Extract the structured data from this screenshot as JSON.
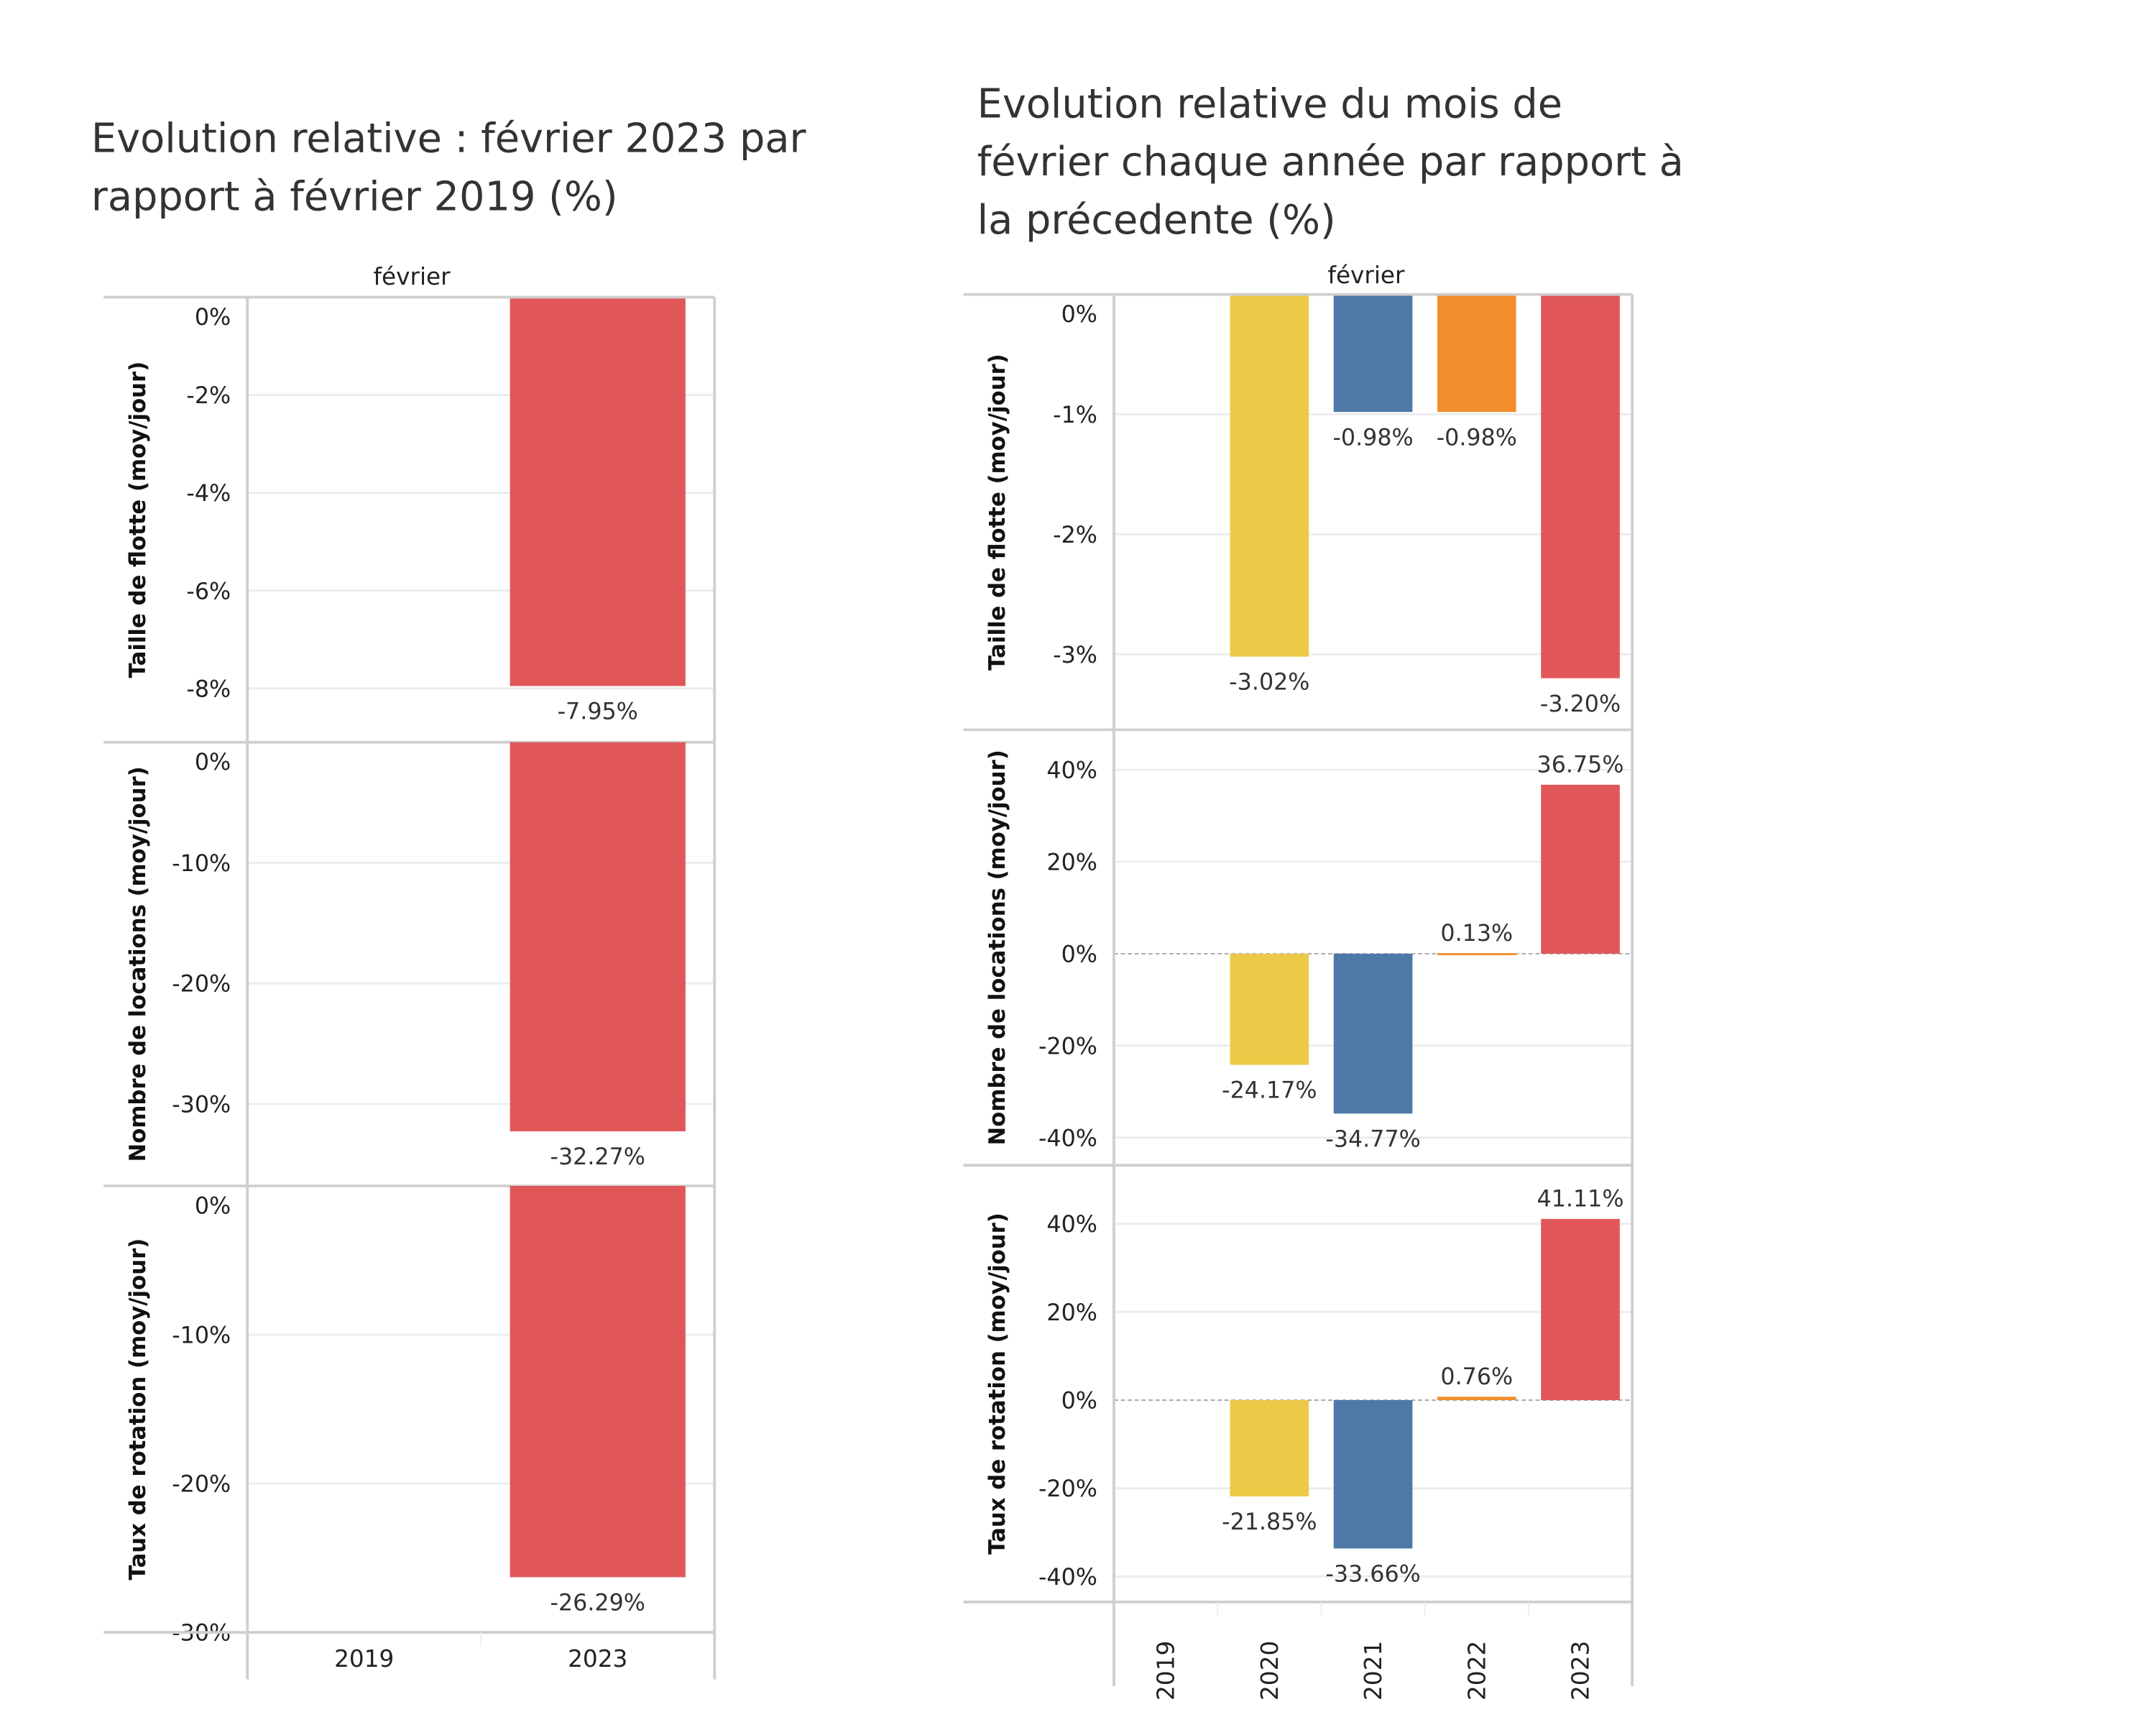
{
  "colors": {
    "2019": "#bab0ac",
    "2020": "#edc948",
    "2021": "#4e79a7",
    "2022": "#f28e2b",
    "2023": "#e15759",
    "grid": "#ececec",
    "frame": "#cfcfcf"
  },
  "chart_data": [
    {
      "type": "bar",
      "title_lines": [
        "Evolution relative : février 2023 par",
        "rapport à février 2019 (%)"
      ],
      "column_header": "février",
      "categories": [
        "2019",
        "2023"
      ],
      "panels": [
        {
          "ylabel": "Taille de flotte (moy/jour)",
          "ylim": [
            -9.1,
            0
          ],
          "ticks": [
            0,
            -2,
            -4,
            -6,
            -8
          ],
          "tick_labels": [
            "0%",
            "-2%",
            "-4%",
            "-6%",
            "-8%"
          ],
          "values": [
            null,
            -7.95
          ],
          "data_labels": [
            "",
            "-7.95%"
          ]
        },
        {
          "ylabel": "Nombre de locations (moy/jour)",
          "ylim": [
            -36.8,
            0
          ],
          "ticks": [
            0,
            -10,
            -20,
            -30
          ],
          "tick_labels": [
            "0%",
            "-10%",
            "-20%",
            "-30%"
          ],
          "values": [
            null,
            -32.27
          ],
          "data_labels": [
            "",
            "-32.27%"
          ]
        },
        {
          "ylabel": "Taux de rotation (moy/jour)",
          "ylim": [
            -30,
            0
          ],
          "ticks": [
            0,
            -10,
            -20,
            -30
          ],
          "tick_labels": [
            "0%",
            "-10%",
            "-20%",
            "-30%"
          ],
          "values": [
            null,
            -26.29
          ],
          "data_labels": [
            "",
            "-26.29%"
          ]
        }
      ]
    },
    {
      "type": "bar",
      "title_lines": [
        "Evolution relative du mois de",
        "février chaque année par rapport à",
        "la précedente (%)"
      ],
      "column_header": "février",
      "categories": [
        "2019",
        "2020",
        "2021",
        "2022",
        "2023"
      ],
      "panels": [
        {
          "ylabel": "Taille de flotte (moy/jour)",
          "ylim": [
            -3.63,
            0
          ],
          "ticks": [
            0,
            -1,
            -2,
            -3
          ],
          "tick_labels": [
            "0%",
            "-1%",
            "-2%",
            "-3%"
          ],
          "values": [
            null,
            -3.02,
            -0.98,
            -0.98,
            -3.2
          ],
          "data_labels": [
            "",
            "-3.02%",
            "-0.98%",
            "-0.98%",
            "-3.20%"
          ]
        },
        {
          "ylabel": "Nombre de locations (moy/jour)",
          "ylim": [
            -46,
            48.7
          ],
          "ticks": [
            40,
            20,
            0,
            -20,
            -40
          ],
          "tick_labels": [
            "40%",
            "20%",
            "0%",
            "-20%",
            "-40%"
          ],
          "values": [
            null,
            -24.17,
            -34.77,
            0.13,
            36.75
          ],
          "data_labels": [
            "",
            "-24.17%",
            "-34.77%",
            "0.13%",
            "36.75%"
          ]
        },
        {
          "ylabel": "Taux de rotation (moy/jour)",
          "ylim": [
            -45.8,
            53.3
          ],
          "ticks": [
            40,
            20,
            0,
            -20,
            -40
          ],
          "tick_labels": [
            "40%",
            "20%",
            "0%",
            "-20%",
            "-40%"
          ],
          "values": [
            null,
            -21.85,
            -33.66,
            0.76,
            41.11
          ],
          "data_labels": [
            "",
            "-21.85%",
            "-33.66%",
            "0.76%",
            "41.11%"
          ]
        }
      ]
    }
  ]
}
